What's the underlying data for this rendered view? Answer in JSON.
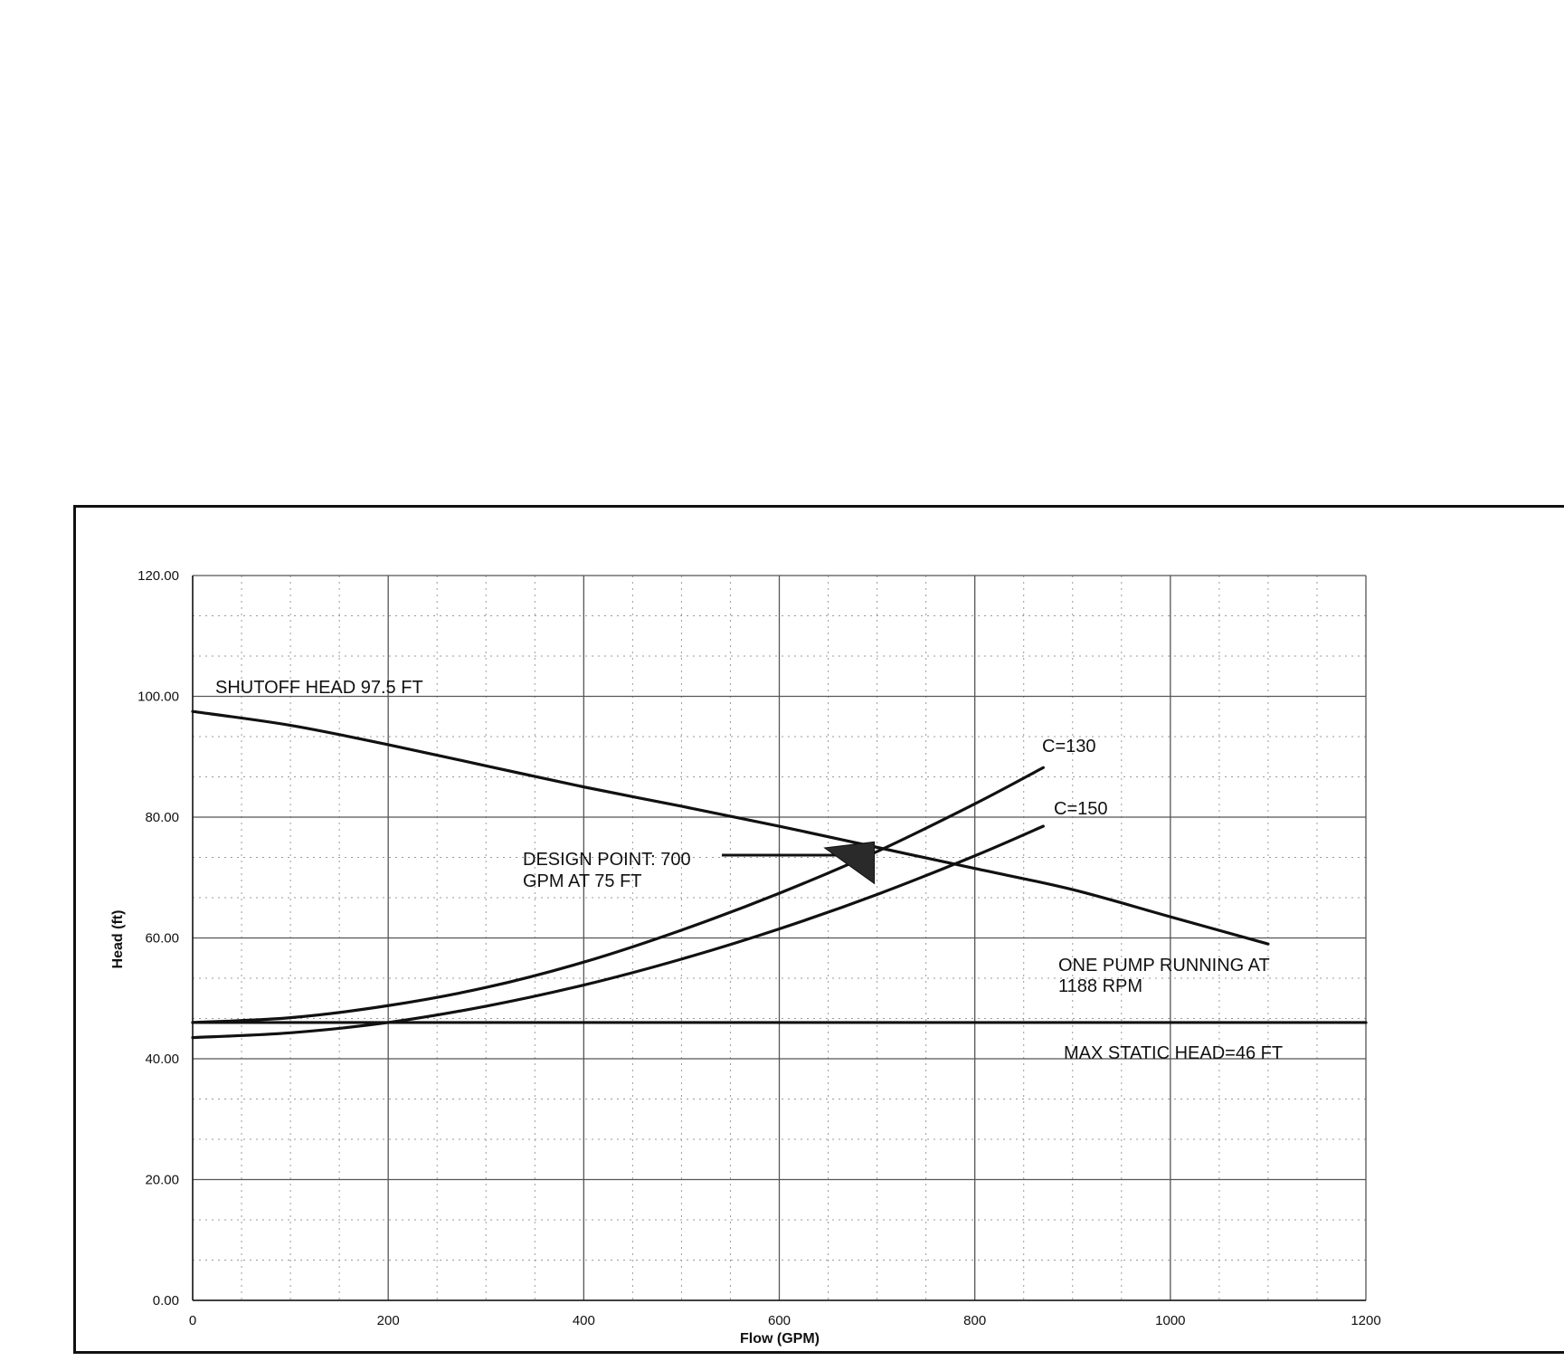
{
  "chart_data": {
    "type": "line",
    "xlabel": "Flow (GPM)",
    "ylabel": "Head (ft)",
    "xlim": [
      0,
      1200
    ],
    "ylim": [
      0,
      120
    ],
    "x_ticks": [
      "0",
      "200",
      "400",
      "600",
      "800",
      "1000",
      "1200"
    ],
    "y_ticks": [
      "0.00",
      "20.00",
      "40.00",
      "60.00",
      "80.00",
      "100.00",
      "120.00"
    ],
    "grid": true,
    "minor_grid": true,
    "series": [
      {
        "name": "ONE PUMP RUNNING AT 1188 RPM",
        "x": [
          0,
          100,
          200,
          300,
          400,
          500,
          600,
          700,
          800,
          900,
          1000,
          1100
        ],
        "y": [
          97.5,
          95.2,
          92.0,
          88.5,
          85.0,
          81.8,
          78.5,
          75.0,
          71.5,
          68.0,
          63.5,
          59.0
        ]
      },
      {
        "name": "C=130",
        "x": [
          0,
          100,
          200,
          300,
          400,
          500,
          600,
          700,
          800,
          870
        ],
        "y": [
          46.0,
          46.8,
          48.8,
          51.8,
          56.0,
          61.3,
          67.4,
          74.3,
          82.2,
          88.2
        ]
      },
      {
        "name": "C=150",
        "x": [
          0,
          100,
          200,
          300,
          400,
          500,
          600,
          700,
          800,
          870
        ],
        "y": [
          43.5,
          44.3,
          46.0,
          48.7,
          52.2,
          56.5,
          61.5,
          67.2,
          73.6,
          78.5
        ]
      },
      {
        "name": "MAX STATIC HEAD=46 FT",
        "x": [
          0,
          1200
        ],
        "y": [
          46,
          46
        ]
      }
    ],
    "annotations": {
      "shutoff": "SHUTOFF HEAD 97.5 FT",
      "c130": "C=130",
      "c150": "C=150",
      "design_line1": "DESIGN POINT: 700",
      "design_line2": "GPM AT 75 FT",
      "pump_line1": "ONE PUMP RUNNING AT",
      "pump_line2": "1188 RPM",
      "static": "MAX STATIC HEAD=46 FT"
    },
    "design_point": {
      "x": 700,
      "y": 75
    },
    "colors": {
      "line": "#111111",
      "grid": "#555555",
      "minor_grid": "#9a9a9a"
    }
  }
}
